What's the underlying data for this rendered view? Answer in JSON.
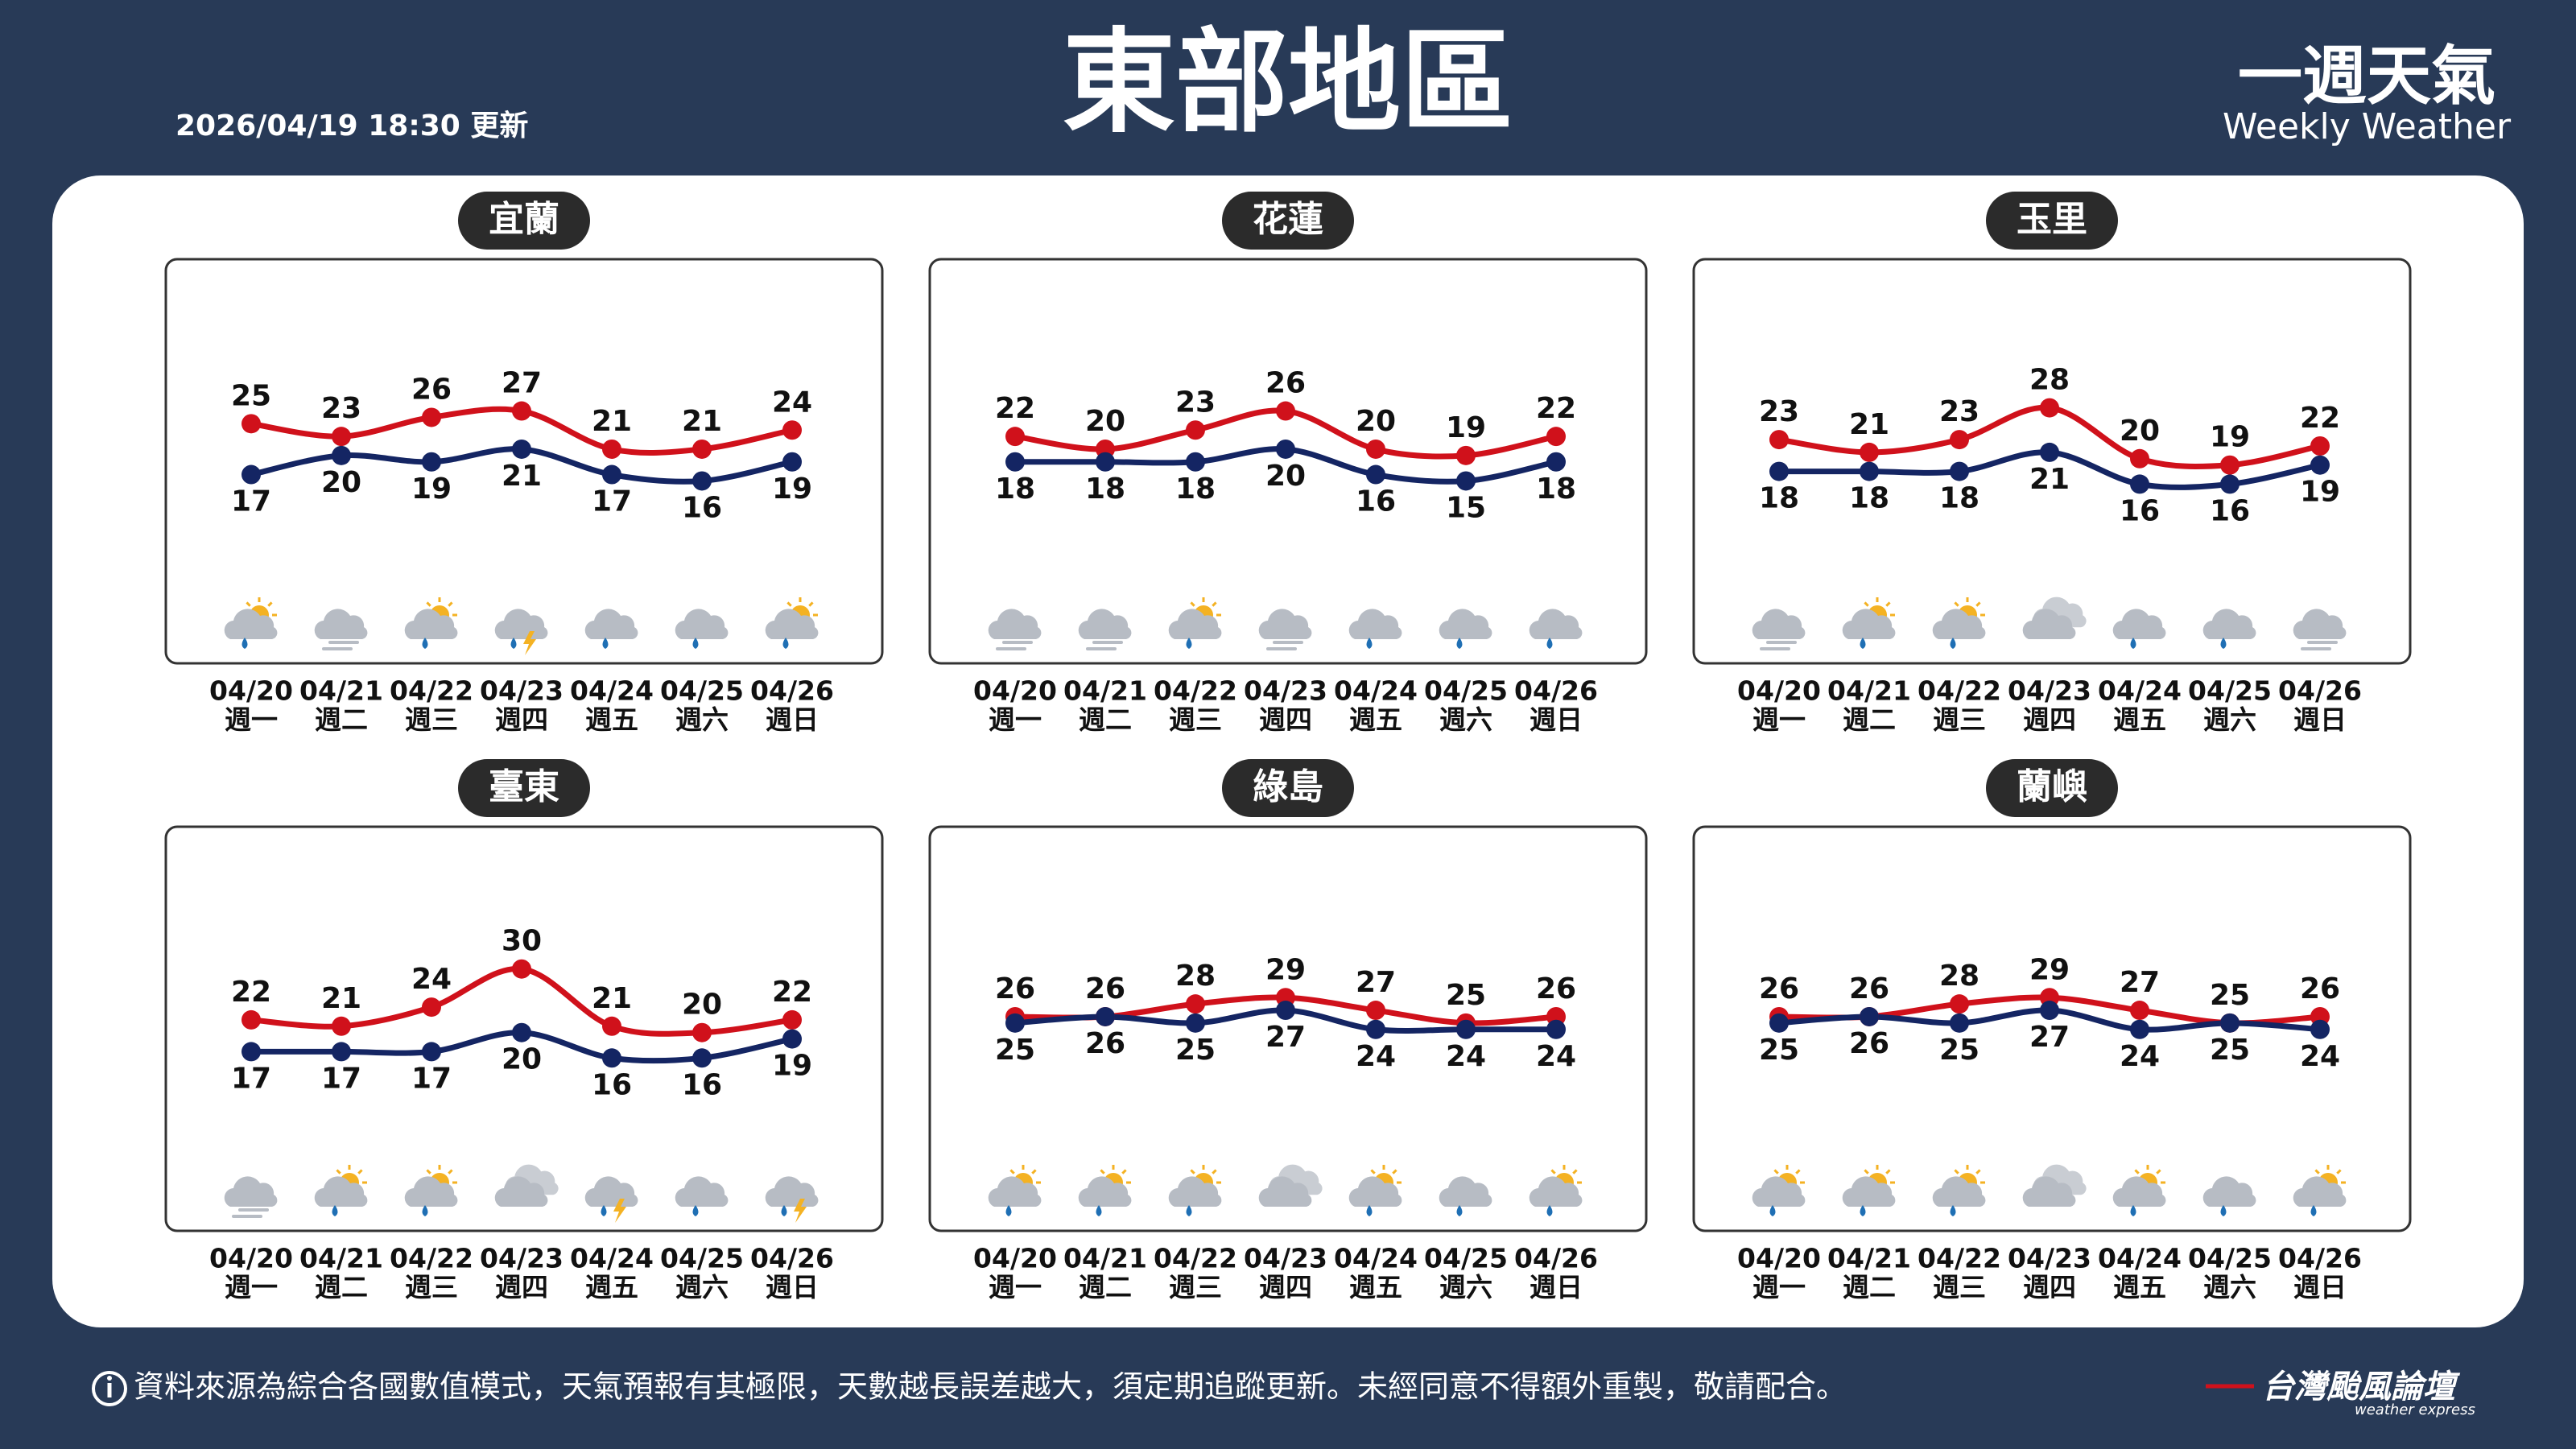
{
  "header": {
    "title": "東部地區",
    "updated": "2026/04/19 18:30 更新",
    "brand": "一週天氣",
    "brand_en": "Weekly Weather"
  },
  "chart_data": [
    {
      "type": "line",
      "title": "宜蘭",
      "categories": [
        "04/20",
        "04/21",
        "04/22",
        "04/23",
        "04/24",
        "04/25",
        "04/26"
      ],
      "weekdays": [
        "週一",
        "週二",
        "週三",
        "週四",
        "週五",
        "週六",
        "週日"
      ],
      "series": [
        {
          "color": "#d0111b",
          "values": [
            25,
            23,
            26,
            27,
            21,
            21,
            24
          ]
        },
        {
          "color": "#142563",
          "values": [
            17,
            20,
            19,
            21,
            17,
            16,
            19
          ]
        }
      ],
      "icons": [
        "sun-cloud-rain",
        "cloud-fog",
        "sun-cloud-rain",
        "cloud-thunder",
        "cloud-rain",
        "cloud-rain",
        "sun-cloud-rain"
      ]
    },
    {
      "type": "line",
      "title": "花蓮",
      "categories": [
        "04/20",
        "04/21",
        "04/22",
        "04/23",
        "04/24",
        "04/25",
        "04/26"
      ],
      "weekdays": [
        "週一",
        "週二",
        "週三",
        "週四",
        "週五",
        "週六",
        "週日"
      ],
      "series": [
        {
          "color": "#d0111b",
          "values": [
            22,
            20,
            23,
            26,
            20,
            19,
            22
          ]
        },
        {
          "color": "#142563",
          "values": [
            18,
            18,
            18,
            20,
            16,
            15,
            18
          ]
        }
      ],
      "icons": [
        "cloud-fog",
        "cloud-fog",
        "sun-cloud-rain",
        "cloud-fog",
        "cloud-rain",
        "cloud-rain",
        "cloud-rain"
      ]
    },
    {
      "type": "line",
      "title": "玉里",
      "categories": [
        "04/20",
        "04/21",
        "04/22",
        "04/23",
        "04/24",
        "04/25",
        "04/26"
      ],
      "weekdays": [
        "週一",
        "週二",
        "週三",
        "週四",
        "週五",
        "週六",
        "週日"
      ],
      "series": [
        {
          "color": "#d0111b",
          "values": [
            23,
            21,
            23,
            28,
            20,
            19,
            22
          ]
        },
        {
          "color": "#142563",
          "values": [
            18,
            18,
            18,
            21,
            16,
            16,
            19
          ]
        }
      ],
      "icons": [
        "cloud-fog",
        "sun-cloud-rain",
        "sun-cloud-rain",
        "clouds",
        "cloud-rain",
        "cloud-rain",
        "cloud-fog"
      ]
    },
    {
      "type": "line",
      "title": "臺東",
      "categories": [
        "04/20",
        "04/21",
        "04/22",
        "04/23",
        "04/24",
        "04/25",
        "04/26"
      ],
      "weekdays": [
        "週一",
        "週二",
        "週三",
        "週四",
        "週五",
        "週六",
        "週日"
      ],
      "series": [
        {
          "color": "#d0111b",
          "values": [
            22,
            21,
            24,
            30,
            21,
            20,
            22
          ]
        },
        {
          "color": "#142563",
          "values": [
            17,
            17,
            17,
            20,
            16,
            16,
            19
          ]
        }
      ],
      "icons": [
        "cloud-fog",
        "sun-cloud-rain",
        "sun-cloud-rain",
        "clouds",
        "cloud-thunder",
        "cloud-rain",
        "cloud-thunder"
      ]
    },
    {
      "type": "line",
      "title": "綠島",
      "categories": [
        "04/20",
        "04/21",
        "04/22",
        "04/23",
        "04/24",
        "04/25",
        "04/26"
      ],
      "weekdays": [
        "週一",
        "週二",
        "週三",
        "週四",
        "週五",
        "週六",
        "週日"
      ],
      "series": [
        {
          "color": "#d0111b",
          "values": [
            26,
            26,
            28,
            29,
            27,
            25,
            26
          ]
        },
        {
          "color": "#142563",
          "values": [
            25,
            26,
            25,
            27,
            24,
            24,
            24
          ]
        }
      ],
      "icons": [
        "sun-cloud-rain",
        "sun-cloud-rain",
        "sun-cloud-rain",
        "clouds",
        "sun-cloud-rain",
        "cloud-rain",
        "sun-cloud-rain"
      ]
    },
    {
      "type": "line",
      "title": "蘭嶼",
      "categories": [
        "04/20",
        "04/21",
        "04/22",
        "04/23",
        "04/24",
        "04/25",
        "04/26"
      ],
      "weekdays": [
        "週一",
        "週二",
        "週三",
        "週四",
        "週五",
        "週六",
        "週日"
      ],
      "series": [
        {
          "color": "#d0111b",
          "values": [
            26,
            26,
            28,
            29,
            27,
            25,
            26
          ]
        },
        {
          "color": "#142563",
          "values": [
            25,
            26,
            25,
            27,
            24,
            25,
            24
          ]
        }
      ],
      "icons": [
        "sun-cloud-rain",
        "sun-cloud-rain",
        "sun-cloud-rain",
        "clouds",
        "sun-cloud-rain",
        "cloud-rain",
        "sun-cloud-rain"
      ]
    }
  ],
  "footer": {
    "note": "資料來源為綜合各國數值模式，天氣預報有其極限，天數越長誤差越大，須定期追蹤更新。未經同意不得額外重製，敬請配合。",
    "logo": "台灣颱風論壇",
    "logo_en": "weather express"
  }
}
